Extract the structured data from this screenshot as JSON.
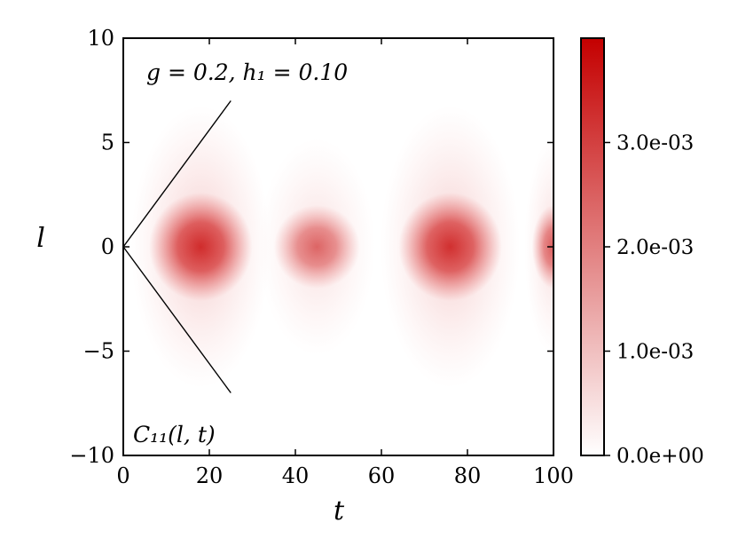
{
  "chart_data": {
    "type": "heatmap",
    "title": "",
    "xlabel": "t",
    "ylabel": "l",
    "xlim": [
      0,
      100
    ],
    "ylim": [
      -10,
      10
    ],
    "xticks": [
      0,
      20,
      40,
      60,
      80,
      100
    ],
    "xtick_labels": [
      "0",
      "20",
      "40",
      "60",
      "80",
      "100"
    ],
    "yticks": [
      -10,
      -5,
      0,
      5,
      10
    ],
    "ytick_labels": [
      "−10",
      "−5",
      "0",
      "5",
      "10"
    ],
    "grid": false,
    "colormap": {
      "low": "#ffffff",
      "high": "#c40000"
    },
    "colorbar": {
      "range": [
        0,
        0.004
      ],
      "ticks": [
        0,
        0.001,
        0.002,
        0.003
      ],
      "tick_labels": [
        "0.0e+00",
        "1.0e-03",
        "2.0e-03",
        "3.0e-03"
      ]
    },
    "blobs": [
      {
        "t_center": 18,
        "t_width": 6,
        "l_width": 1.3,
        "peak": 0.0037
      },
      {
        "t_center": 45,
        "t_width": 5,
        "l_width": 1.0,
        "peak": 0.0024
      },
      {
        "t_center": 76,
        "t_width": 6,
        "l_width": 1.3,
        "peak": 0.0036
      },
      {
        "t_center": 100,
        "t_width": 2.5,
        "l_width": 1.0,
        "peak": 0.0026
      }
    ],
    "lightcone": {
      "t": [
        0,
        25
      ],
      "upper_l": [
        0,
        7
      ],
      "lower_l": [
        0,
        -7
      ]
    },
    "annotations": {
      "params": "g = 0.2, h₁ = 0.10",
      "quantity": "C₁₁(l, t)"
    }
  }
}
